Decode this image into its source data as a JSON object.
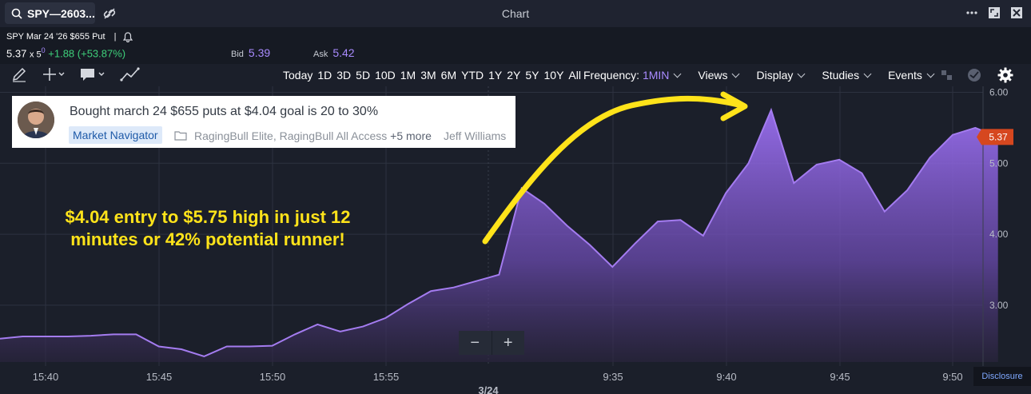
{
  "header": {
    "search_value": "SPY—2603...",
    "window_title": "Chart"
  },
  "quote": {
    "symbol": "SPY Mar 24 '26 $655 Put",
    "separator": "|",
    "last": "5.37",
    "size": "x 5",
    "size_sup": "0",
    "change": "+1.88 (+53.87%)",
    "bid_label": "Bid",
    "bid": "5.39",
    "ask_label": "Ask",
    "ask": "5.42"
  },
  "toolbar": {
    "ranges": [
      "Today",
      "1D",
      "3D",
      "5D",
      "10D",
      "1M",
      "3M",
      "6M",
      "YTD",
      "1Y",
      "2Y",
      "5Y",
      "10Y",
      "All"
    ],
    "frequency_label": "Frequency:",
    "frequency_value": "1MIN",
    "views": "Views",
    "display": "Display",
    "studies": "Studies",
    "events": "Events"
  },
  "publication": {
    "title": "Bought march 24 $655 puts at $4.04 goal is 20 to 30%",
    "tag": "Market Navigator",
    "groups": "RagingBull Elite, RagingBull All Access",
    "more": "+5 more",
    "author": "Jeff Williams"
  },
  "annotation": {
    "line1": "$4.04 entry to $5.75 high in just 12",
    "line2": "minutes or 42% potential runner!"
  },
  "zoom": {
    "minus": "−",
    "plus": "+"
  },
  "disclosure": "Disclosure",
  "colors": {
    "accent": "#a98bff",
    "area_fill": "#8b63e0",
    "line": "#a47cf0",
    "price_tag": "#d6471f",
    "annotation": "#ffe31a",
    "up": "#3ecf7a"
  },
  "chart_data": {
    "type": "area",
    "x_ticks": [
      "15:40",
      "15:45",
      "15:50",
      "15:55",
      "3/24",
      "9:35",
      "9:40",
      "9:45",
      "9:50"
    ],
    "y_ticks": [
      "6.00",
      "5.00",
      "4.00",
      "3.00"
    ],
    "ylim": [
      2.2,
      6.05
    ],
    "current_label": "5.37",
    "grid": true,
    "points": [
      {
        "t": "15:37",
        "v": 2.53
      },
      {
        "t": "15:38",
        "v": 2.56
      },
      {
        "t": "15:39",
        "v": 2.56
      },
      {
        "t": "15:40",
        "v": 2.56
      },
      {
        "t": "15:41",
        "v": 2.57
      },
      {
        "t": "15:42",
        "v": 2.59
      },
      {
        "t": "15:43",
        "v": 2.59
      },
      {
        "t": "15:44",
        "v": 2.42
      },
      {
        "t": "15:45",
        "v": 2.38
      },
      {
        "t": "15:46",
        "v": 2.28
      },
      {
        "t": "15:47",
        "v": 2.42
      },
      {
        "t": "15:48",
        "v": 2.42
      },
      {
        "t": "15:49",
        "v": 2.43
      },
      {
        "t": "15:50",
        "v": 2.59
      },
      {
        "t": "15:51",
        "v": 2.73
      },
      {
        "t": "15:52",
        "v": 2.63
      },
      {
        "t": "15:53",
        "v": 2.7
      },
      {
        "t": "15:54",
        "v": 2.82
      },
      {
        "t": "15:55",
        "v": 3.02
      },
      {
        "t": "15:56",
        "v": 3.2
      },
      {
        "t": "15:57",
        "v": 3.25
      },
      {
        "t": "15:58",
        "v": 3.34
      },
      {
        "t": "15:59",
        "v": 3.43
      },
      {
        "t": "9:30",
        "v": 4.65
      },
      {
        "t": "9:31",
        "v": 4.43
      },
      {
        "t": "9:32",
        "v": 4.12
      },
      {
        "t": "9:33",
        "v": 3.85
      },
      {
        "t": "9:34",
        "v": 3.54
      },
      {
        "t": "9:35",
        "v": 3.87
      },
      {
        "t": "9:36",
        "v": 4.18
      },
      {
        "t": "9:37",
        "v": 4.2
      },
      {
        "t": "9:38",
        "v": 3.98
      },
      {
        "t": "9:39",
        "v": 4.58
      },
      {
        "t": "9:40",
        "v": 5.0
      },
      {
        "t": "9:41",
        "v": 5.75
      },
      {
        "t": "9:42",
        "v": 4.72
      },
      {
        "t": "9:43",
        "v": 4.98
      },
      {
        "t": "9:44",
        "v": 5.05
      },
      {
        "t": "9:45",
        "v": 4.86
      },
      {
        "t": "9:46",
        "v": 4.32
      },
      {
        "t": "9:47",
        "v": 4.62
      },
      {
        "t": "9:48",
        "v": 5.08
      },
      {
        "t": "9:49",
        "v": 5.4
      },
      {
        "t": "9:50",
        "v": 5.5
      },
      {
        "t": "9:51",
        "v": 5.37
      }
    ]
  }
}
